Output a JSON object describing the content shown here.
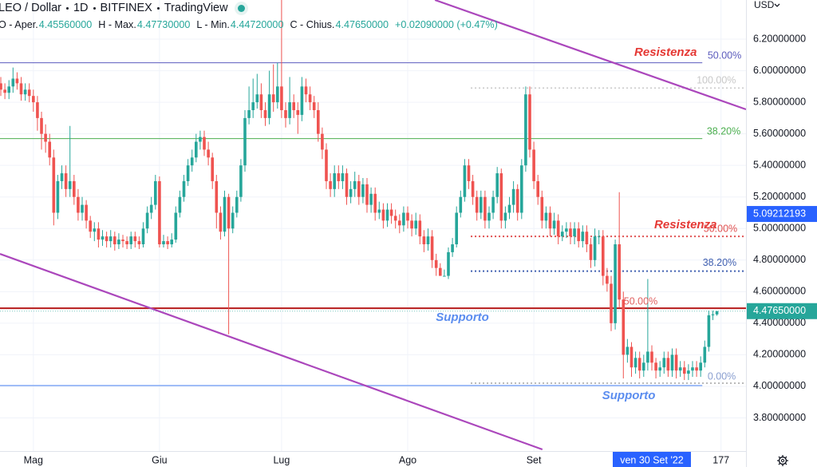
{
  "header": {
    "symbol": "LEO / Dollar",
    "interval": "1D",
    "exchange": "BITFINEX",
    "source": "TradingView",
    "ohlc": [
      {
        "label": "O - Aper.",
        "value": "4.45560000"
      },
      {
        "label": "H - Max.",
        "value": "4.47730000"
      },
      {
        "label": "L - Min.",
        "value": "4.44720000"
      },
      {
        "label": "C - Chius.",
        "value": "4.47650000"
      }
    ],
    "change": "+0.02090000 (+0.47%)"
  },
  "chart_data": {
    "type": "candlestick",
    "y_unit": "USD",
    "up_color": "#26a69a",
    "down_color": "#ef5350",
    "grid": true,
    "x": [
      0,
      1,
      2,
      3,
      4,
      5,
      6,
      7,
      8,
      9,
      10,
      11,
      12,
      13,
      14,
      15,
      16,
      17,
      18,
      19,
      20,
      21,
      22,
      23,
      24,
      25,
      26,
      27,
      28,
      29,
      30,
      31,
      32,
      33,
      34,
      35,
      36,
      37,
      38,
      39,
      40,
      41,
      42,
      43,
      44,
      45,
      46,
      47,
      48,
      49,
      50,
      51,
      52,
      53,
      54,
      55,
      56,
      57,
      58,
      59,
      60,
      61,
      62,
      63,
      64,
      65,
      66,
      67,
      68,
      69,
      70,
      71,
      72,
      73,
      74,
      75,
      76,
      77,
      78,
      79,
      80,
      81,
      82,
      83,
      84,
      85,
      86,
      87,
      88,
      89,
      90,
      91,
      92,
      93,
      94,
      95,
      96,
      97,
      98,
      99,
      100,
      101,
      102,
      103,
      104,
      105,
      106,
      107,
      108,
      109,
      110,
      111,
      112,
      113,
      114,
      115,
      116,
      117,
      118,
      119,
      120,
      121,
      122,
      123,
      124,
      125,
      126,
      127,
      128,
      129,
      130,
      131,
      132,
      133,
      134,
      135,
      136,
      137,
      138,
      139,
      140,
      141,
      142,
      143,
      144,
      145,
      146,
      147,
      148,
      149,
      150,
      151,
      152,
      153,
      154,
      155,
      156,
      157,
      158,
      159,
      160,
      161,
      162,
      163,
      164,
      165,
      166,
      167,
      168,
      169,
      170,
      171,
      172,
      173,
      174,
      175,
      176
    ],
    "open": [
      5.92,
      5.88,
      5.86,
      5.9,
      5.95,
      5.92,
      5.85,
      5.88,
      5.84,
      5.8,
      5.7,
      5.6,
      5.55,
      5.45,
      5.1,
      5.3,
      5.35,
      5.25,
      5.3,
      5.2,
      5.1,
      5.15,
      5.05,
      4.98,
      5.0,
      4.93,
      4.95,
      4.92,
      4.95,
      4.9,
      4.93,
      4.92,
      4.9,
      4.95,
      4.92,
      4.9,
      5.0,
      5.1,
      5.15,
      5.3,
      4.9,
      4.92,
      4.9,
      4.93,
      5.1,
      5.2,
      5.3,
      5.4,
      5.45,
      5.55,
      5.58,
      5.5,
      5.45,
      5.3,
      5.1,
      4.98,
      5.2,
      5.0,
      5.1,
      5.2,
      5.4,
      5.7,
      5.75,
      5.8,
      5.85,
      5.75,
      5.7,
      5.85,
      5.8,
      5.9,
      5.75,
      5.7,
      5.8,
      5.75,
      5.72,
      5.9,
      5.85,
      5.8,
      5.75,
      5.6,
      5.5,
      5.3,
      5.25,
      5.35,
      5.3,
      5.35,
      5.2,
      5.25,
      5.3,
      5.2,
      5.28,
      5.15,
      5.22,
      5.1,
      5.12,
      5.05,
      5.12,
      5.08,
      5.05,
      5.02,
      5.1,
      5.05,
      5.0,
      5.05,
      4.95,
      4.9,
      4.95,
      4.8,
      4.75,
      4.7,
      4.7,
      4.85,
      4.9,
      5.1,
      5.2,
      5.4,
      5.3,
      5.2,
      5.1,
      5.2,
      5.05,
      5.1,
      5.2,
      5.35,
      5.05,
      5.1,
      5.15,
      5.25,
      5.1,
      5.4,
      5.85,
      5.5,
      5.3,
      5.2,
      5.05,
      5.1,
      5.0,
      5.05,
      4.95,
      4.98,
      5.0,
      4.95,
      5.0,
      4.92,
      4.98,
      4.9,
      4.8,
      4.95,
      4.95,
      4.7,
      4.65,
      4.4,
      4.9,
      4.55,
      4.2,
      4.25,
      4.12,
      4.18,
      4.1,
      4.15,
      4.22,
      4.15,
      4.1,
      4.12,
      4.18,
      4.1,
      4.2,
      4.1,
      4.12,
      4.08,
      4.1,
      4.12,
      4.1,
      4.15,
      4.25,
      4.45,
      4.4556
    ],
    "high": [
      5.96,
      5.92,
      5.94,
      6.02,
      5.99,
      5.96,
      5.92,
      5.92,
      5.88,
      5.84,
      5.74,
      5.66,
      5.6,
      5.5,
      5.34,
      5.4,
      5.4,
      5.65,
      5.34,
      5.25,
      5.2,
      5.18,
      5.08,
      5.04,
      5.04,
      4.99,
      4.98,
      4.99,
      4.98,
      4.97,
      4.96,
      4.95,
      4.98,
      4.98,
      4.95,
      5.04,
      5.14,
      5.2,
      5.34,
      5.33,
      4.96,
      4.95,
      4.97,
      5.14,
      5.24,
      5.34,
      5.44,
      5.5,
      5.6,
      5.62,
      5.62,
      5.55,
      5.48,
      5.34,
      5.14,
      5.24,
      5.22,
      5.14,
      5.24,
      5.44,
      5.75,
      5.9,
      5.95,
      5.98,
      5.92,
      5.8,
      6.0,
      6.04,
      6.05,
      6.45,
      5.8,
      5.96,
      5.85,
      5.8,
      5.96,
      5.95,
      5.9,
      5.84,
      5.8,
      5.64,
      5.54,
      5.35,
      5.4,
      5.4,
      5.4,
      5.38,
      5.3,
      5.36,
      5.34,
      5.32,
      5.32,
      5.26,
      5.26,
      5.17,
      5.16,
      5.16,
      5.16,
      5.12,
      5.09,
      5.14,
      5.14,
      5.09,
      5.1,
      5.09,
      4.99,
      5.0,
      4.99,
      4.84,
      4.78,
      4.74,
      4.88,
      4.94,
      5.14,
      5.24,
      5.44,
      5.44,
      5.34,
      5.24,
      5.24,
      5.24,
      5.14,
      5.24,
      5.39,
      5.38,
      5.14,
      5.2,
      5.3,
      5.28,
      5.44,
      5.9,
      5.9,
      5.55,
      5.34,
      5.24,
      5.14,
      5.14,
      5.1,
      5.09,
      5.02,
      5.04,
      5.04,
      5.04,
      5.04,
      5.02,
      5.02,
      4.94,
      5.0,
      4.99,
      4.99,
      4.75,
      4.7,
      4.93,
      5.23,
      4.6,
      4.3,
      4.28,
      4.22,
      4.22,
      4.2,
      4.68,
      4.26,
      4.18,
      4.16,
      4.22,
      4.22,
      4.24,
      4.24,
      4.16,
      4.16,
      4.14,
      4.16,
      4.16,
      4.19,
      4.29,
      4.48,
      4.48,
      4.4773
    ],
    "low": [
      5.84,
      5.82,
      5.82,
      5.86,
      5.88,
      5.81,
      5.81,
      5.8,
      5.74,
      5.62,
      5.5,
      5.48,
      5.4,
      5.02,
      5.06,
      5.25,
      5.2,
      5.2,
      5.15,
      5.05,
      5.05,
      5.0,
      4.94,
      4.92,
      4.88,
      4.89,
      4.88,
      4.88,
      4.86,
      4.87,
      4.88,
      4.87,
      4.87,
      4.88,
      4.87,
      4.88,
      4.97,
      5.06,
      5.12,
      4.88,
      4.88,
      4.87,
      4.88,
      4.91,
      5.07,
      5.17,
      5.27,
      5.36,
      5.42,
      5.5,
      5.46,
      5.4,
      5.25,
      5.0,
      4.93,
      4.95,
      4.33,
      4.97,
      5.07,
      5.17,
      5.36,
      5.66,
      5.7,
      5.76,
      5.7,
      5.65,
      5.66,
      5.74,
      5.76,
      5.7,
      5.64,
      5.66,
      5.7,
      5.6,
      5.68,
      5.8,
      5.75,
      5.7,
      5.55,
      5.44,
      5.25,
      5.2,
      5.2,
      5.25,
      5.25,
      5.15,
      5.16,
      5.2,
      5.15,
      5.16,
      5.1,
      5.1,
      5.05,
      5.06,
      5.0,
      5.01,
      5.03,
      5.0,
      4.97,
      4.98,
      5.0,
      4.95,
      4.96,
      4.9,
      4.85,
      4.86,
      4.75,
      4.7,
      4.7,
      4.7,
      4.68,
      4.82,
      4.88,
      5.07,
      5.17,
      5.25,
      5.15,
      5.05,
      5.06,
      5.0,
      5.0,
      5.06,
      5.16,
      5.0,
      5.0,
      5.06,
      5.1,
      5.05,
      5.06,
      5.36,
      5.45,
      5.25,
      5.15,
      5.0,
      5.0,
      4.95,
      4.96,
      4.9,
      4.92,
      4.94,
      4.9,
      4.9,
      4.88,
      4.88,
      4.85,
      4.75,
      4.76,
      4.9,
      4.64,
      4.6,
      4.35,
      4.36,
      4.5,
      4.05,
      4.15,
      4.06,
      4.08,
      4.05,
      4.06,
      4.1,
      4.1,
      4.05,
      4.06,
      4.08,
      4.06,
      4.06,
      4.05,
      4.06,
      4.04,
      4.04,
      4.06,
      4.06,
      4.06,
      4.12,
      4.22,
      4.42,
      4.4472
    ],
    "close": [
      5.88,
      5.86,
      5.9,
      5.95,
      5.92,
      5.85,
      5.88,
      5.84,
      5.8,
      5.7,
      5.6,
      5.55,
      5.45,
      5.1,
      5.3,
      5.35,
      5.25,
      5.3,
      5.2,
      5.1,
      5.15,
      5.05,
      4.98,
      5.0,
      4.93,
      4.95,
      4.92,
      4.95,
      4.9,
      4.93,
      4.92,
      4.9,
      4.95,
      4.92,
      4.9,
      5.0,
      5.1,
      5.15,
      5.3,
      4.9,
      4.92,
      4.9,
      4.93,
      5.1,
      5.2,
      5.3,
      5.4,
      5.45,
      5.55,
      5.58,
      5.5,
      5.45,
      5.3,
      5.1,
      4.98,
      5.2,
      5.0,
      5.1,
      5.2,
      5.4,
      5.7,
      5.75,
      5.8,
      5.85,
      5.75,
      5.7,
      5.85,
      5.8,
      5.9,
      5.75,
      5.7,
      5.8,
      5.75,
      5.72,
      5.9,
      5.85,
      5.8,
      5.75,
      5.6,
      5.5,
      5.3,
      5.25,
      5.35,
      5.3,
      5.35,
      5.2,
      5.25,
      5.3,
      5.2,
      5.28,
      5.15,
      5.22,
      5.1,
      5.12,
      5.05,
      5.12,
      5.08,
      5.05,
      5.02,
      5.1,
      5.05,
      5.0,
      5.05,
      4.95,
      4.9,
      4.95,
      4.8,
      4.75,
      4.7,
      4.7,
      4.85,
      4.9,
      5.1,
      5.2,
      5.4,
      5.3,
      5.2,
      5.1,
      5.2,
      5.05,
      5.1,
      5.2,
      5.35,
      5.05,
      5.1,
      5.15,
      5.25,
      5.1,
      5.4,
      5.85,
      5.5,
      5.3,
      5.2,
      5.05,
      5.1,
      5.0,
      5.05,
      4.95,
      4.98,
      5.0,
      4.95,
      5.0,
      4.92,
      4.98,
      4.9,
      4.8,
      4.95,
      4.95,
      4.7,
      4.65,
      4.4,
      4.9,
      4.55,
      4.2,
      4.25,
      4.12,
      4.18,
      4.1,
      4.15,
      4.22,
      4.15,
      4.1,
      4.12,
      4.18,
      4.1,
      4.2,
      4.1,
      4.12,
      4.08,
      4.1,
      4.12,
      4.1,
      4.15,
      4.25,
      4.45,
      4.4556,
      4.4765
    ],
    "xlim": [
      -0.2,
      183.14
    ],
    "xticks": [
      {
        "value": 8,
        "label": "Mag"
      },
      {
        "value": 39,
        "label": "Giu"
      },
      {
        "value": 69,
        "label": "Lug"
      },
      {
        "value": 100,
        "label": "Ago"
      },
      {
        "value": 131,
        "label": "Set"
      },
      177
    ],
    "ylim": [
      3.59,
      6.448
    ],
    "yticks": [
      {
        "value": 3.8,
        "label": "3.80000000"
      },
      {
        "value": 4.0,
        "label": "4.00000000"
      },
      {
        "value": 4.2,
        "label": "4.20000000"
      },
      {
        "value": 4.4,
        "label": "4.40000000"
      },
      {
        "value": 4.6,
        "label": "4.60000000"
      },
      {
        "value": 4.8,
        "label": "4.80000000"
      },
      {
        "value": 5.0,
        "label": "5.00000000"
      },
      {
        "value": 5.2,
        "label": "5.20000000"
      },
      {
        "value": 5.4,
        "label": "5.40000000"
      },
      {
        "value": 5.6,
        "label": "5.60000000"
      },
      {
        "value": 5.8,
        "label": "5.80000000"
      },
      {
        "value": 6.0,
        "label": "6.00000000"
      },
      {
        "value": 6.2,
        "label": "6.20000000"
      }
    ],
    "levels": [
      {
        "value": 6.05,
        "from": -0.2,
        "to": 172.4,
        "color": "#5b5bbf",
        "dashed": false,
        "width": 1
      },
      {
        "value": 5.57,
        "from": -0.2,
        "to": 172.4,
        "color": "#4caf50",
        "dashed": false,
        "width": 1
      },
      {
        "value": 4.495,
        "from": -0.2,
        "to": 183.14,
        "color": "#b71c1c",
        "dashed": false,
        "width": 2
      },
      {
        "value": 4.005,
        "from": -0.2,
        "to": 172.4,
        "color": "#82a9f5",
        "dashed": false,
        "width": 1.5
      },
      {
        "value": 5.89,
        "from": 115.5,
        "to": 183.14,
        "color": "#c8c8c8",
        "dashed": true,
        "width": 1.5
      },
      {
        "value": 4.95,
        "from": 115.5,
        "to": 183.14,
        "color": "#e05050",
        "dashed": true,
        "width": 2
      },
      {
        "value": 4.73,
        "from": 115.5,
        "to": 183.14,
        "color": "#3f5fb0",
        "dashed": true,
        "width": 2
      },
      {
        "value": 4.02,
        "from": 115.5,
        "to": 183.14,
        "color": "#a0a0a0",
        "dashed": true,
        "width": 1.5
      }
    ],
    "trend_lines": [
      {
        "x": [
          106.7,
          183.14
        ],
        "y": [
          6.448,
          5.755
        ],
        "color": "#ab47bc"
      },
      {
        "x": [
          -0.2,
          133.1
        ],
        "y": [
          4.839,
          3.6
        ],
        "color": "#ab47bc"
      }
    ],
    "annotations": [
      {
        "text": "Resistenza",
        "day": 155.7,
        "price": 6.114,
        "color": "#e53935",
        "emphasis": true
      },
      {
        "text": "50.00%",
        "day": 173.7,
        "price": 6.094,
        "color": "#5c5cbd",
        "emphasis": false
      },
      {
        "text": "100.00%",
        "day": 171.0,
        "price": 5.937,
        "color": "#c8c8c8",
        "emphasis": false
      },
      {
        "text": "38.20%",
        "day": 173.5,
        "price": 5.613,
        "color": "#4caf50",
        "emphasis": false
      },
      {
        "text": "Resistenza",
        "day": 160.6,
        "price": 5.021,
        "color": "#e53935",
        "emphasis": true
      },
      {
        "text": "50.00%",
        "day": 172.7,
        "price": 4.996,
        "color": "#e05050",
        "emphasis": false
      },
      {
        "text": "38.20%",
        "day": 172.5,
        "price": 4.779,
        "color": "#3f5fb0",
        "emphasis": false
      },
      {
        "text": "50.00%",
        "day": 153.1,
        "price": 4.536,
        "color": "#e06060",
        "emphasis": false
      },
      {
        "text": "Supporto",
        "day": 106.9,
        "price": 4.435,
        "color": "#5b8def",
        "emphasis": true
      },
      {
        "text": "0.00%",
        "day": 173.7,
        "price": 4.06,
        "color": "#8a9fd0",
        "emphasis": false
      },
      {
        "text": "Supporto",
        "day": 147.8,
        "price": 3.939,
        "color": "#5b8def",
        "emphasis": true
      }
    ],
    "last_price": {
      "value": 4.4765,
      "label": "4.47650000",
      "color": "#26a69a"
    },
    "crosshair": {
      "price": {
        "value": 5.09212193,
        "label": "5.09212193"
      },
      "date": {
        "value": 160,
        "label": "ven 30 Set '22"
      },
      "color": "#2962ff"
    }
  }
}
